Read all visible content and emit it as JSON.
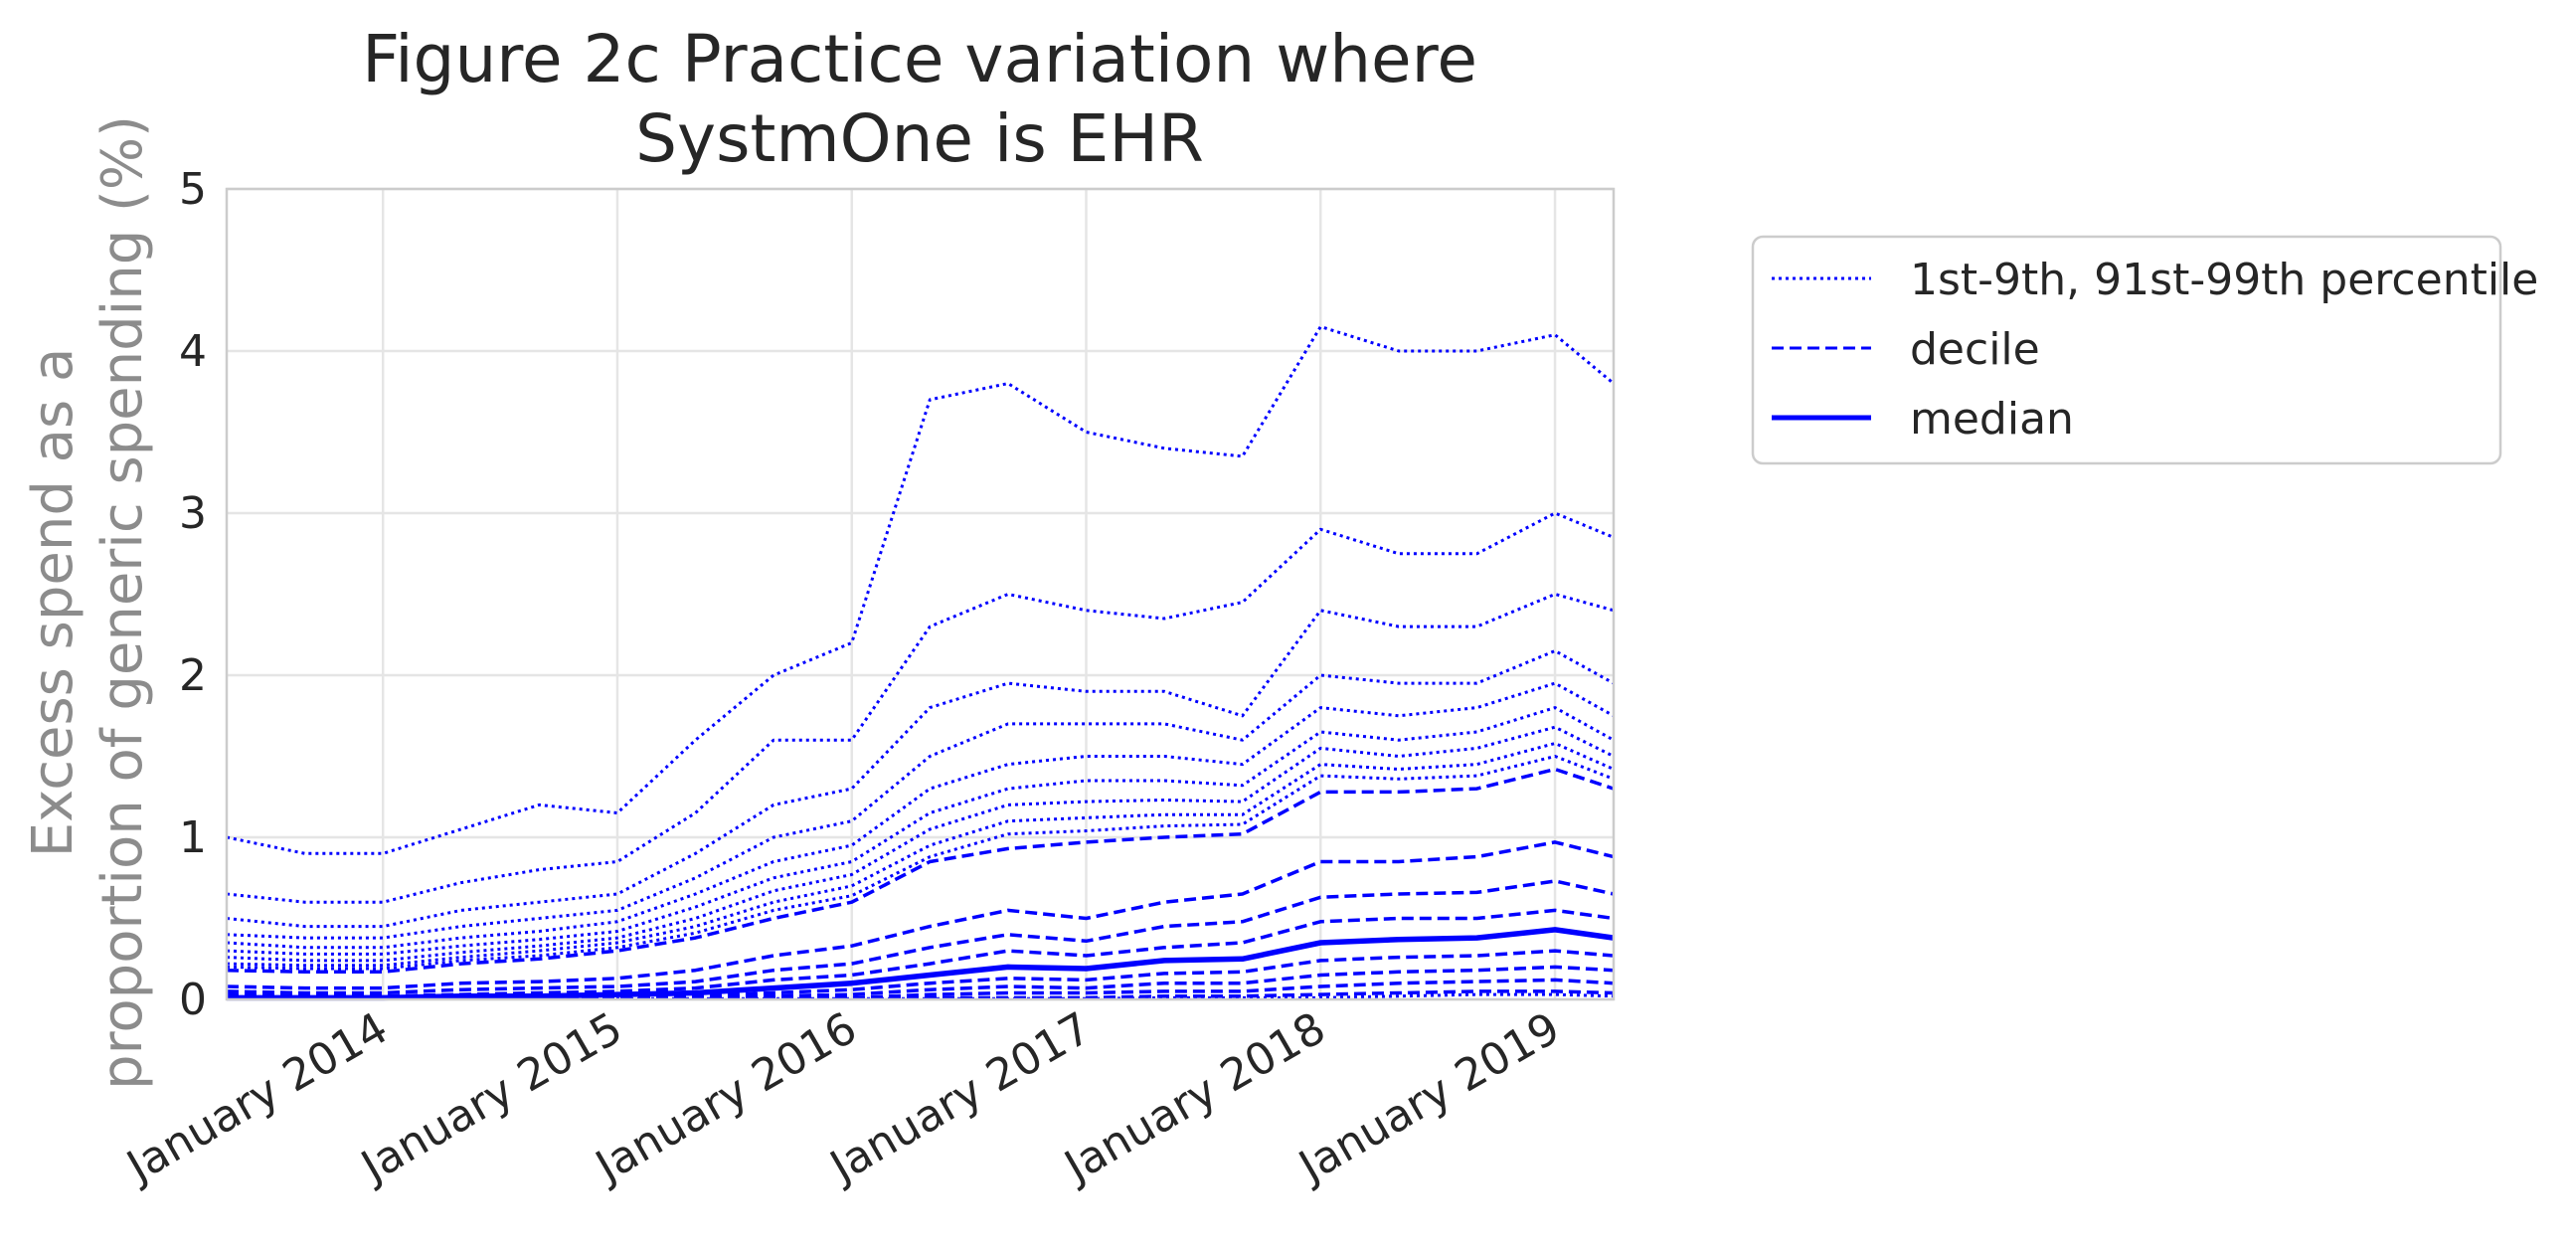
{
  "chart_data": {
    "type": "line",
    "title_lines": [
      "Figure 2c Practice variation where",
      "SystmOne is EHR"
    ],
    "ylabel_lines": [
      "Excess spend as a",
      "proportion of generic spending (%)"
    ],
    "xlabel": "",
    "ylim": [
      0,
      5
    ],
    "xlim": [
      "2013-05",
      "2019-04"
    ],
    "yticks": [
      "0",
      "1",
      "2",
      "3",
      "4",
      "5"
    ],
    "xticks": [
      {
        "date": "2014-01",
        "label": "January 2014"
      },
      {
        "date": "2015-01",
        "label": "January 2015"
      },
      {
        "date": "2016-01",
        "label": "January 2016"
      },
      {
        "date": "2017-01",
        "label": "January 2017"
      },
      {
        "date": "2018-01",
        "label": "January 2018"
      },
      {
        "date": "2019-01",
        "label": "January 2019"
      }
    ],
    "grid": true,
    "legend_position": "outside-right",
    "color": "#0000ff",
    "legend": [
      {
        "label": "1st-9th, 91st-99th percentile",
        "style": "dotted"
      },
      {
        "label": "decile",
        "style": "dashed"
      },
      {
        "label": "median",
        "style": "solid"
      }
    ],
    "x": [
      "2013-05",
      "2013-09",
      "2014-01",
      "2014-05",
      "2014-09",
      "2015-01",
      "2015-05",
      "2015-09",
      "2016-01",
      "2016-05",
      "2016-09",
      "2017-01",
      "2017-05",
      "2017-09",
      "2018-01",
      "2018-05",
      "2018-09",
      "2019-01",
      "2019-04"
    ],
    "series": [
      {
        "percentile": 99,
        "style": "dotted",
        "values": [
          1.0,
          0.9,
          0.9,
          1.05,
          1.2,
          1.15,
          1.6,
          2.0,
          2.2,
          3.7,
          3.8,
          3.5,
          3.4,
          3.35,
          4.15,
          4.0,
          4.0,
          4.1,
          3.8
        ]
      },
      {
        "percentile": 98,
        "style": "dotted",
        "values": [
          0.65,
          0.6,
          0.6,
          0.72,
          0.8,
          0.85,
          1.15,
          1.6,
          1.6,
          2.3,
          2.5,
          2.4,
          2.35,
          2.45,
          2.9,
          2.75,
          2.75,
          3.0,
          2.85
        ]
      },
      {
        "percentile": 97,
        "style": "dotted",
        "values": [
          0.5,
          0.45,
          0.45,
          0.55,
          0.6,
          0.65,
          0.9,
          1.2,
          1.3,
          1.8,
          1.95,
          1.9,
          1.9,
          1.75,
          2.4,
          2.3,
          2.3,
          2.5,
          2.4
        ]
      },
      {
        "percentile": 96,
        "style": "dotted",
        "values": [
          0.4,
          0.38,
          0.38,
          0.45,
          0.5,
          0.55,
          0.75,
          1.0,
          1.1,
          1.5,
          1.7,
          1.7,
          1.7,
          1.6,
          2.0,
          1.95,
          1.95,
          2.15,
          1.95
        ]
      },
      {
        "percentile": 95,
        "style": "dotted",
        "values": [
          0.35,
          0.32,
          0.32,
          0.38,
          0.42,
          0.48,
          0.65,
          0.85,
          0.95,
          1.3,
          1.45,
          1.5,
          1.5,
          1.45,
          1.8,
          1.75,
          1.8,
          1.95,
          1.75
        ]
      },
      {
        "percentile": 94,
        "style": "dotted",
        "values": [
          0.3,
          0.28,
          0.28,
          0.33,
          0.37,
          0.42,
          0.57,
          0.75,
          0.85,
          1.15,
          1.3,
          1.35,
          1.35,
          1.32,
          1.65,
          1.6,
          1.65,
          1.8,
          1.6
        ]
      },
      {
        "percentile": 93,
        "style": "dotted",
        "values": [
          0.26,
          0.24,
          0.24,
          0.29,
          0.33,
          0.38,
          0.5,
          0.67,
          0.77,
          1.05,
          1.2,
          1.22,
          1.23,
          1.22,
          1.55,
          1.5,
          1.55,
          1.68,
          1.5
        ]
      },
      {
        "percentile": 92,
        "style": "dotted",
        "values": [
          0.22,
          0.21,
          0.21,
          0.26,
          0.3,
          0.35,
          0.45,
          0.6,
          0.7,
          0.95,
          1.1,
          1.12,
          1.14,
          1.14,
          1.45,
          1.42,
          1.45,
          1.58,
          1.42
        ]
      },
      {
        "percentile": 91,
        "style": "dotted",
        "values": [
          0.2,
          0.19,
          0.19,
          0.24,
          0.27,
          0.32,
          0.41,
          0.55,
          0.64,
          0.88,
          1.02,
          1.04,
          1.07,
          1.08,
          1.38,
          1.36,
          1.38,
          1.5,
          1.36
        ]
      },
      {
        "percentile": 90,
        "style": "dashed",
        "values": [
          0.18,
          0.17,
          0.17,
          0.22,
          0.25,
          0.3,
          0.38,
          0.5,
          0.6,
          0.85,
          0.93,
          0.97,
          1.0,
          1.02,
          1.28,
          1.28,
          1.3,
          1.42,
          1.3
        ]
      },
      {
        "percentile": 80,
        "style": "dashed",
        "values": [
          0.08,
          0.07,
          0.07,
          0.1,
          0.11,
          0.13,
          0.18,
          0.27,
          0.33,
          0.45,
          0.55,
          0.5,
          0.6,
          0.65,
          0.85,
          0.85,
          0.88,
          0.97,
          0.88
        ]
      },
      {
        "percentile": 70,
        "style": "dashed",
        "values": [
          0.05,
          0.04,
          0.04,
          0.06,
          0.07,
          0.08,
          0.11,
          0.18,
          0.22,
          0.32,
          0.4,
          0.36,
          0.45,
          0.48,
          0.63,
          0.65,
          0.66,
          0.73,
          0.65
        ]
      },
      {
        "percentile": 60,
        "style": "dashed",
        "values": [
          0.03,
          0.02,
          0.02,
          0.03,
          0.04,
          0.05,
          0.07,
          0.12,
          0.15,
          0.22,
          0.3,
          0.27,
          0.32,
          0.35,
          0.48,
          0.5,
          0.5,
          0.55,
          0.5
        ]
      },
      {
        "percentile": 50,
        "style": "solid",
        "values": [
          0.01,
          0.01,
          0.01,
          0.02,
          0.02,
          0.03,
          0.04,
          0.07,
          0.1,
          0.15,
          0.2,
          0.19,
          0.24,
          0.25,
          0.35,
          0.37,
          0.38,
          0.43,
          0.38
        ]
      },
      {
        "percentile": 40,
        "style": "dashed",
        "values": [
          0.0,
          0.0,
          0.0,
          0.01,
          0.01,
          0.02,
          0.02,
          0.04,
          0.06,
          0.1,
          0.13,
          0.12,
          0.16,
          0.17,
          0.24,
          0.26,
          0.27,
          0.3,
          0.27
        ]
      },
      {
        "percentile": 30,
        "style": "dashed",
        "values": [
          0.0,
          0.0,
          0.0,
          0.0,
          0.0,
          0.01,
          0.01,
          0.02,
          0.03,
          0.06,
          0.08,
          0.07,
          0.1,
          0.1,
          0.15,
          0.17,
          0.18,
          0.2,
          0.18
        ]
      },
      {
        "percentile": 20,
        "style": "dashed",
        "values": [
          0.0,
          0.0,
          0.0,
          0.0,
          0.0,
          0.0,
          0.0,
          0.01,
          0.01,
          0.03,
          0.04,
          0.04,
          0.05,
          0.05,
          0.08,
          0.1,
          0.11,
          0.12,
          0.1
        ]
      },
      {
        "percentile": 10,
        "style": "dashed",
        "values": [
          0.0,
          0.0,
          0.0,
          0.0,
          0.0,
          0.0,
          0.0,
          0.0,
          0.0,
          0.01,
          0.01,
          0.01,
          0.02,
          0.02,
          0.03,
          0.04,
          0.05,
          0.05,
          0.04
        ]
      },
      {
        "percentile": 5,
        "style": "dotted",
        "values": [
          0.0,
          0.0,
          0.0,
          0.0,
          0.0,
          0.0,
          0.0,
          0.0,
          0.0,
          0.0,
          0.0,
          0.0,
          0.01,
          0.01,
          0.01,
          0.02,
          0.03,
          0.03,
          0.02
        ]
      }
    ]
  }
}
